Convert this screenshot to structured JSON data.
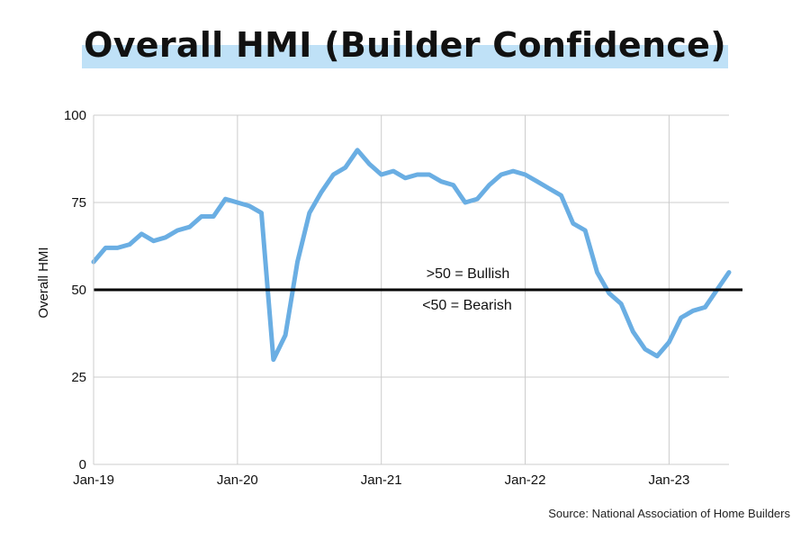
{
  "title": "Overall HMI (Builder Confidence)",
  "source": "Source: National Association of Home Builders",
  "colors": {
    "line": "#6aaee3",
    "highlight": "#bfe1f7",
    "grid": "#cccccc",
    "threshold": "#000000"
  },
  "chart_data": {
    "type": "line",
    "title": "Overall HMI (Builder Confidence)",
    "xlabel": "",
    "ylabel": "Overall HMI",
    "ylim": [
      0,
      100
    ],
    "yticks": [
      0,
      25,
      50,
      75,
      100
    ],
    "xticks": [
      "Jan-19",
      "Jan-20",
      "Jan-21",
      "Jan-22",
      "Jan-23"
    ],
    "grid": true,
    "x": [
      "Jan-19",
      "Feb-19",
      "Mar-19",
      "Apr-19",
      "May-19",
      "Jun-19",
      "Jul-19",
      "Aug-19",
      "Sep-19",
      "Oct-19",
      "Nov-19",
      "Dec-19",
      "Jan-20",
      "Feb-20",
      "Mar-20",
      "Apr-20",
      "May-20",
      "Jun-20",
      "Jul-20",
      "Aug-20",
      "Sep-20",
      "Oct-20",
      "Nov-20",
      "Dec-20",
      "Jan-21",
      "Feb-21",
      "Mar-21",
      "Apr-21",
      "May-21",
      "Jun-21",
      "Jul-21",
      "Aug-21",
      "Sep-21",
      "Oct-21",
      "Nov-21",
      "Dec-21",
      "Jan-22",
      "Feb-22",
      "Mar-22",
      "Apr-22",
      "May-22",
      "Jun-22",
      "Jul-22",
      "Aug-22",
      "Sep-22",
      "Oct-22",
      "Nov-22",
      "Dec-22",
      "Jan-23",
      "Feb-23",
      "Mar-23",
      "Apr-23",
      "May-23",
      "Jun-23"
    ],
    "series": [
      {
        "values": [
          58,
          62,
          62,
          63,
          66,
          64,
          65,
          67,
          68,
          71,
          71,
          76,
          75,
          74,
          72,
          30,
          37,
          58,
          72,
          78,
          83,
          85,
          90,
          86,
          83,
          84,
          82,
          83,
          83,
          81,
          80,
          75,
          76,
          80,
          83,
          84,
          83,
          81,
          79,
          77,
          69,
          67,
          55,
          49,
          46,
          38,
          33,
          31,
          35,
          42,
          44,
          45,
          50,
          55
        ]
      }
    ],
    "threshold": {
      "value": 50,
      "label_above": ">50 = Bullish",
      "label_below": "<50 = Bearish"
    }
  }
}
